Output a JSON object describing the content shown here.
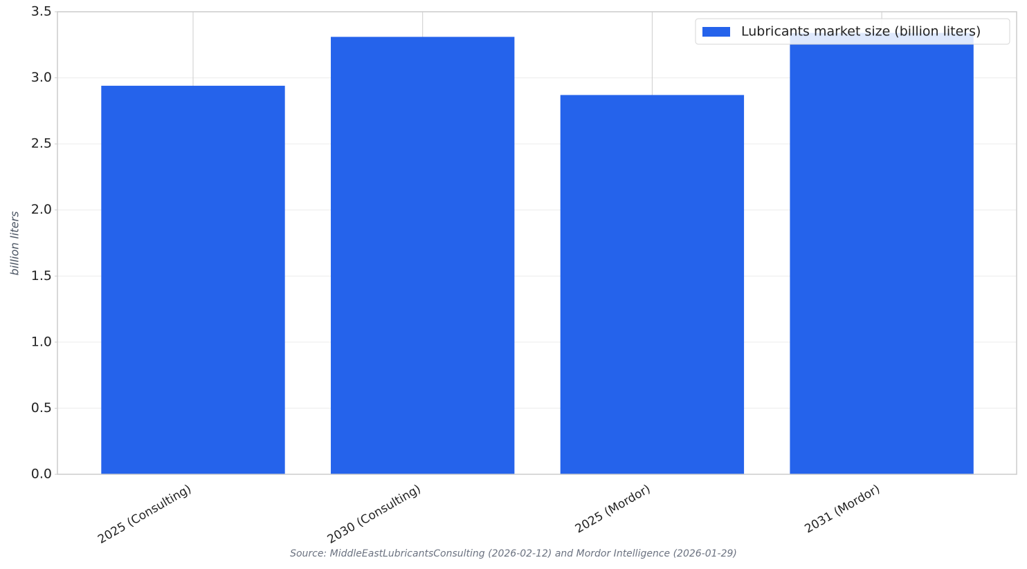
{
  "chart_data": {
    "type": "bar",
    "categories": [
      "2025 (Consulting)",
      "2030 (Consulting)",
      "2025 (Mordor)",
      "2031 (Mordor)"
    ],
    "series": [
      {
        "name": "Lubricants market size (billion liters)",
        "color": "#2563eb",
        "values": [
          2.94,
          3.31,
          2.87,
          3.34
        ]
      }
    ],
    "y_label": "billion liters",
    "source": "Source: MiddleEastLubricantsConsulting (2026-02-12) and Mordor Intelligence (2026-01-29)",
    "ylim": [
      0,
      3.5
    ],
    "yticks": [
      {
        "value": 0,
        "label": "0.0"
      },
      0.5,
      {
        "value": 1,
        "label": "1.0"
      },
      1.5,
      {
        "value": 2,
        "label": "2.0"
      },
      2.5,
      {
        "value": 3,
        "label": "3.0"
      },
      3.5
    ],
    "grid": true,
    "legend": "upper right"
  }
}
